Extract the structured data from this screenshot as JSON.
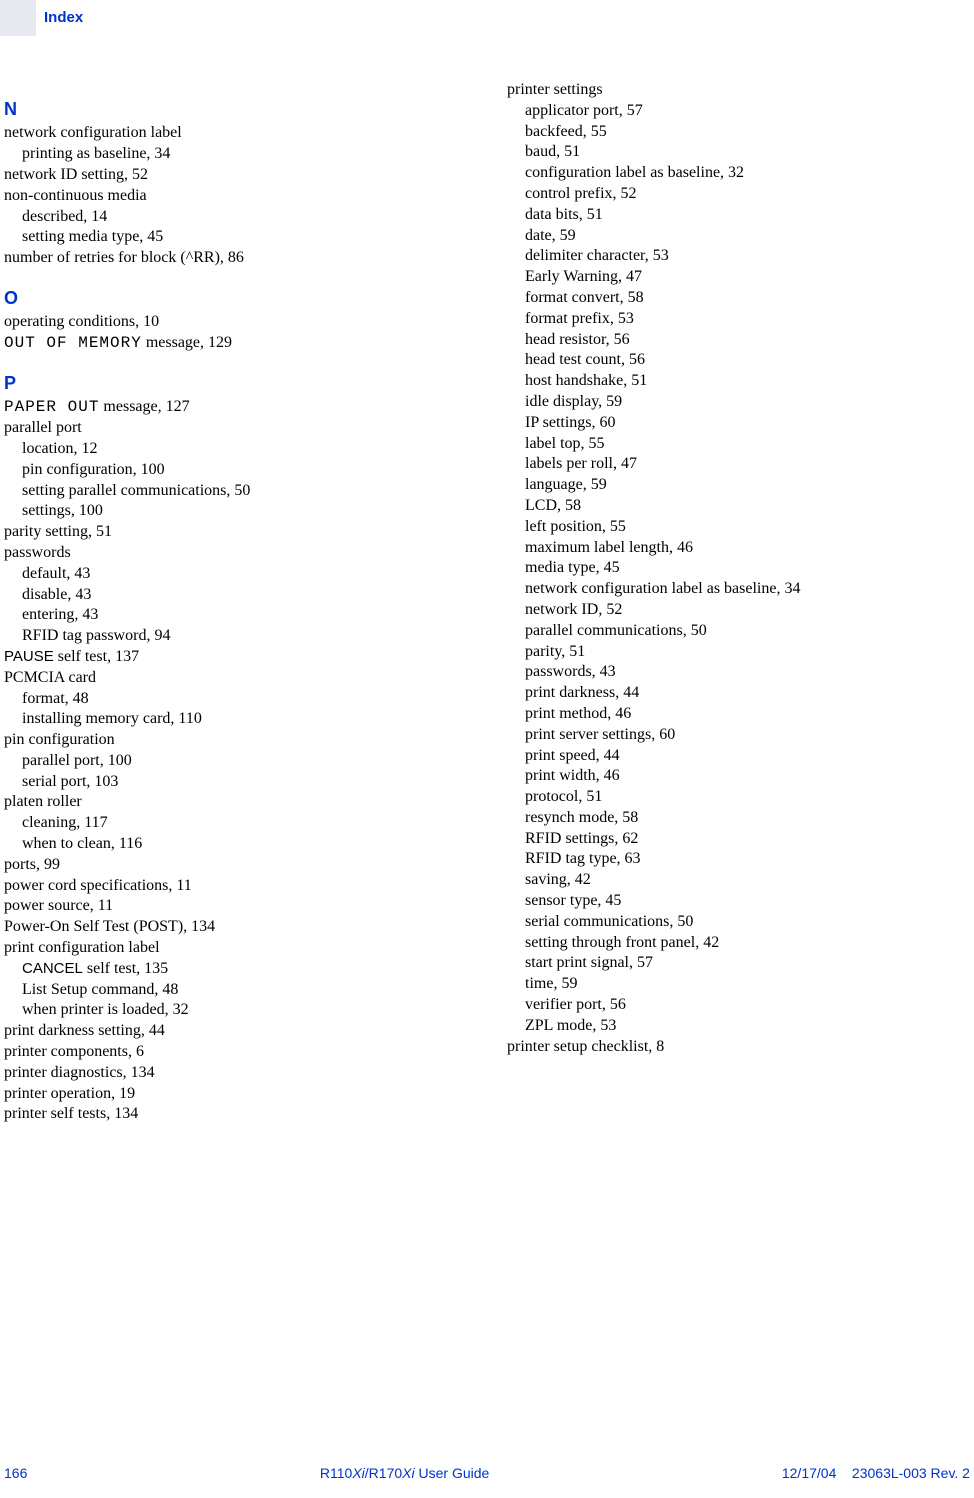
{
  "header": {
    "label": "Index"
  },
  "footer": {
    "page_number": "166",
    "center_prefix": "R110",
    "center_ital1": "Xi",
    "center_mid": "/R170",
    "center_ital2": "Xi",
    "center_suffix": " User Guide",
    "date": "12/17/04",
    "rev": "23063L-003 Rev. 2"
  },
  "sections": {
    "N": {
      "letter": "N"
    },
    "O": {
      "letter": "O"
    },
    "P": {
      "letter": "P"
    }
  },
  "col1": [
    {
      "name": "section-n-letter",
      "letter": true,
      "bind": "sections.N.letter"
    },
    {
      "name": "entry-network-config-label",
      "text": "network configuration label"
    },
    {
      "name": "entry-printing-as-baseline",
      "text": "printing as baseline, 34",
      "sub": true
    },
    {
      "name": "entry-network-id-setting",
      "text": "network ID setting, 52"
    },
    {
      "name": "entry-non-continuous-media",
      "text": "non-continuous media"
    },
    {
      "name": "entry-described-14",
      "text": "described, 14",
      "sub": true
    },
    {
      "name": "entry-setting-media-type-45",
      "text": "setting media type, 45",
      "sub": true
    },
    {
      "name": "entry-number-retries",
      "text": "number of retries for block (^RR), 86"
    },
    {
      "name": "section-o-letter",
      "letter": true,
      "bind": "sections.O.letter"
    },
    {
      "name": "entry-operating-conditions",
      "text": "operating conditions, 10"
    },
    {
      "name": "entry-out-of-memory",
      "prefix_mono": "OUT OF MEMORY",
      "text": " message, 129"
    },
    {
      "name": "section-p-letter",
      "letter": true,
      "bind": "sections.P.letter"
    },
    {
      "name": "entry-paper-out",
      "prefix_mono": "PAPER OUT",
      "text": " message, 127"
    },
    {
      "name": "entry-parallel-port",
      "text": "parallel port"
    },
    {
      "name": "entry-location-12",
      "text": "location, 12",
      "sub": true
    },
    {
      "name": "entry-pin-config-100",
      "text": "pin configuration, 100",
      "sub": true
    },
    {
      "name": "entry-setting-parallel-comm-50",
      "text": "setting parallel communications, 50",
      "sub": true
    },
    {
      "name": "entry-settings-100",
      "text": "settings, 100",
      "sub": true
    },
    {
      "name": "entry-parity-setting-51",
      "text": "parity setting, 51"
    },
    {
      "name": "entry-passwords",
      "text": "passwords"
    },
    {
      "name": "entry-default-43",
      "text": "default, 43",
      "sub": true
    },
    {
      "name": "entry-disable-43",
      "text": "disable, 43",
      "sub": true
    },
    {
      "name": "entry-entering-43",
      "text": "entering, 43",
      "sub": true
    },
    {
      "name": "entry-rfid-tag-password-94",
      "text": "RFID tag password, 94",
      "sub": true
    },
    {
      "name": "entry-pause-self-test",
      "prefix_sans": "PAUSE",
      "text": " self test, 137"
    },
    {
      "name": "entry-pcmcia-card",
      "text": "PCMCIA card"
    },
    {
      "name": "entry-format-48",
      "text": "format, 48",
      "sub": true
    },
    {
      "name": "entry-installing-memory-card-110",
      "text": "installing memory card, 110",
      "sub": true
    },
    {
      "name": "entry-pin-configuration",
      "text": "pin configuration"
    },
    {
      "name": "entry-parallel-port-100",
      "text": "parallel port, 100",
      "sub": true
    },
    {
      "name": "entry-serial-port-103",
      "text": "serial port, 103",
      "sub": true
    },
    {
      "name": "entry-platen-roller",
      "text": "platen roller"
    },
    {
      "name": "entry-cleaning-117",
      "text": "cleaning, 117",
      "sub": true
    },
    {
      "name": "entry-when-to-clean-116",
      "text": "when to clean, 116",
      "sub": true
    },
    {
      "name": "entry-ports-99",
      "text": "ports, 99"
    },
    {
      "name": "entry-power-cord-spec-11",
      "text": "power cord specifications, 11"
    },
    {
      "name": "entry-power-source-11",
      "text": "power source, 11"
    },
    {
      "name": "entry-post-134",
      "text": "Power-On Self Test (POST), 134"
    },
    {
      "name": "entry-print-config-label",
      "text": "print configuration label"
    },
    {
      "name": "entry-cancel-self-test",
      "prefix_sans": "CANCEL",
      "text": " self test, 135",
      "sub": true
    },
    {
      "name": "entry-list-setup-48",
      "text": "List Setup command, 48",
      "sub": true
    },
    {
      "name": "entry-when-printer-loaded-32",
      "text": "when printer is loaded, 32",
      "sub": true
    },
    {
      "name": "entry-print-darkness-44",
      "text": "print darkness setting, 44"
    },
    {
      "name": "entry-printer-components-6",
      "text": "printer components, 6"
    },
    {
      "name": "entry-printer-diagnostics-134",
      "text": "printer diagnostics, 134"
    },
    {
      "name": "entry-printer-operation-19",
      "text": "printer operation, 19"
    },
    {
      "name": "entry-printer-self-tests-134",
      "text": "printer self tests, 134"
    }
  ],
  "col2": [
    {
      "name": "entry-printer-settings",
      "text": "printer settings"
    },
    {
      "name": "entry-applicator-port-57",
      "text": "applicator port, 57",
      "sub": true
    },
    {
      "name": "entry-backfeed-55",
      "text": "backfeed, 55",
      "sub": true
    },
    {
      "name": "entry-baud-51",
      "text": "baud, 51",
      "sub": true
    },
    {
      "name": "entry-config-label-baseline-32",
      "text": "configuration label as baseline, 32",
      "sub": true
    },
    {
      "name": "entry-control-prefix-52",
      "text": "control prefix, 52",
      "sub": true
    },
    {
      "name": "entry-data-bits-51",
      "text": "data bits, 51",
      "sub": true
    },
    {
      "name": "entry-date-59",
      "text": "date, 59",
      "sub": true
    },
    {
      "name": "entry-delimiter-char-53",
      "text": "delimiter character, 53",
      "sub": true
    },
    {
      "name": "entry-early-warning-47",
      "text": "Early Warning, 47",
      "sub": true
    },
    {
      "name": "entry-format-convert-58",
      "text": "format convert, 58",
      "sub": true
    },
    {
      "name": "entry-format-prefix-53",
      "text": "format prefix, 53",
      "sub": true
    },
    {
      "name": "entry-head-resistor-56",
      "text": "head resistor, 56",
      "sub": true
    },
    {
      "name": "entry-head-test-count-56",
      "text": "head test count, 56",
      "sub": true
    },
    {
      "name": "entry-host-handshake-51",
      "text": "host handshake, 51",
      "sub": true
    },
    {
      "name": "entry-idle-display-59",
      "text": "idle display, 59",
      "sub": true
    },
    {
      "name": "entry-ip-settings-60",
      "text": "IP settings, 60",
      "sub": true
    },
    {
      "name": "entry-label-top-55",
      "text": "label top, 55",
      "sub": true
    },
    {
      "name": "entry-labels-per-roll-47",
      "text": "labels per roll, 47",
      "sub": true
    },
    {
      "name": "entry-language-59",
      "text": "language, 59",
      "sub": true
    },
    {
      "name": "entry-lcd-58",
      "text": "LCD, 58",
      "sub": true
    },
    {
      "name": "entry-left-position-55",
      "text": "left position, 55",
      "sub": true
    },
    {
      "name": "entry-max-label-length-46",
      "text": "maximum label length, 46",
      "sub": true
    },
    {
      "name": "entry-media-type-45",
      "text": "media type, 45",
      "sub": true
    },
    {
      "name": "entry-network-config-label-baseline-34",
      "text": "network configuration label as baseline, 34",
      "sub": true
    },
    {
      "name": "entry-network-id-52",
      "text": "network ID, 52",
      "sub": true
    },
    {
      "name": "entry-parallel-comm-50",
      "text": "parallel communications, 50",
      "sub": true
    },
    {
      "name": "entry-parity-51",
      "text": "parity, 51",
      "sub": true
    },
    {
      "name": "entry-passwords-43",
      "text": "passwords, 43",
      "sub": true
    },
    {
      "name": "entry-print-darkness-44b",
      "text": "print darkness, 44",
      "sub": true
    },
    {
      "name": "entry-print-method-46",
      "text": "print method, 46",
      "sub": true
    },
    {
      "name": "entry-print-server-settings-60",
      "text": "print server settings, 60",
      "sub": true
    },
    {
      "name": "entry-print-speed-44",
      "text": "print speed, 44",
      "sub": true
    },
    {
      "name": "entry-print-width-46",
      "text": "print width, 46",
      "sub": true
    },
    {
      "name": "entry-protocol-51",
      "text": "protocol, 51",
      "sub": true
    },
    {
      "name": "entry-resynch-mode-58",
      "text": "resynch mode, 58",
      "sub": true
    },
    {
      "name": "entry-rfid-settings-62",
      "text": "RFID settings, 62",
      "sub": true
    },
    {
      "name": "entry-rfid-tag-type-63",
      "text": "RFID tag type, 63",
      "sub": true
    },
    {
      "name": "entry-saving-42",
      "text": "saving, 42",
      "sub": true
    },
    {
      "name": "entry-sensor-type-45",
      "text": "sensor type, 45",
      "sub": true
    },
    {
      "name": "entry-serial-comm-50",
      "text": "serial communications, 50",
      "sub": true
    },
    {
      "name": "entry-setting-through-front-panel-42",
      "text": "setting through front panel, 42",
      "sub": true
    },
    {
      "name": "entry-start-print-signal-57",
      "text": "start print signal, 57",
      "sub": true
    },
    {
      "name": "entry-time-59",
      "text": "time, 59",
      "sub": true
    },
    {
      "name": "entry-verifier-port-56",
      "text": "verifier port, 56",
      "sub": true
    },
    {
      "name": "entry-zpl-mode-53",
      "text": "ZPL mode, 53",
      "sub": true
    },
    {
      "name": "entry-printer-setup-checklist-8",
      "text": "printer setup checklist, 8"
    }
  ]
}
